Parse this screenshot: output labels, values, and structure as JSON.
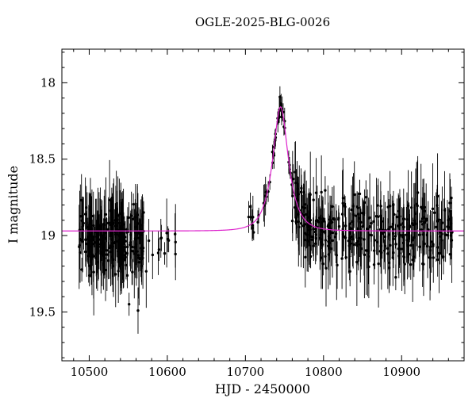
{
  "chart_data": {
    "type": "scatter",
    "title": "OGLE-2025-BLG-0026",
    "xlabel": "HJD - 2450000",
    "ylabel": "I magnitude",
    "xlim": [
      10465,
      10980
    ],
    "ylim": [
      19.82,
      17.78
    ],
    "y_axis_inverted": true,
    "x_ticks": {
      "values": [
        10500,
        10600,
        10700,
        10800,
        10900
      ],
      "labels": [
        "10500",
        "10600",
        "10700",
        "10800",
        "10900"
      ]
    },
    "y_ticks": {
      "values": [
        18,
        18.5,
        19,
        19.5
      ],
      "labels": [
        "18",
        "18.5",
        "19",
        "19.5"
      ]
    },
    "x_minor_step": 20,
    "y_minor_step": 0.1,
    "grid": false,
    "legend": "none",
    "point_color": "#000000",
    "model_color": "#dd22cc",
    "model": {
      "type": "paczynski_microlensing",
      "t0": 10745,
      "tE": 17,
      "u0": 0.52,
      "baseline_mag": 18.97,
      "peak_mag": 18.16
    },
    "seasons": [
      {
        "name": "season-1-dense-baseline",
        "t_start": 10487,
        "t_end": 10570,
        "n": 240,
        "follow_model": false,
        "mag_mean": 19.02,
        "mag_sigma": 0.11,
        "err_min": 0.07,
        "err_max": 0.3
      },
      {
        "name": "season-1-sparse-tail",
        "t_start": 10571,
        "t_end": 10616,
        "n": 14,
        "follow_model": false,
        "mag_mean": 19.08,
        "mag_sigma": 0.1,
        "err_min": 0.07,
        "err_max": 0.25
      },
      {
        "name": "season-2-rising",
        "t_start": 10700,
        "t_end": 10732,
        "n": 16,
        "follow_model": true,
        "mag_sigma": 0.05,
        "err_min": 0.05,
        "err_max": 0.14
      },
      {
        "name": "season-2-peak",
        "t_start": 10733,
        "t_end": 10758,
        "n": 28,
        "follow_model": true,
        "mag_sigma": 0.03,
        "err_min": 0.035,
        "err_max": 0.09
      },
      {
        "name": "season-2-dense-baseline",
        "t_start": 10759,
        "t_end": 10966,
        "n": 340,
        "follow_model": true,
        "mag_sigma": 0.11,
        "err_min": 0.07,
        "err_max": 0.3
      }
    ],
    "seed": 42
  }
}
